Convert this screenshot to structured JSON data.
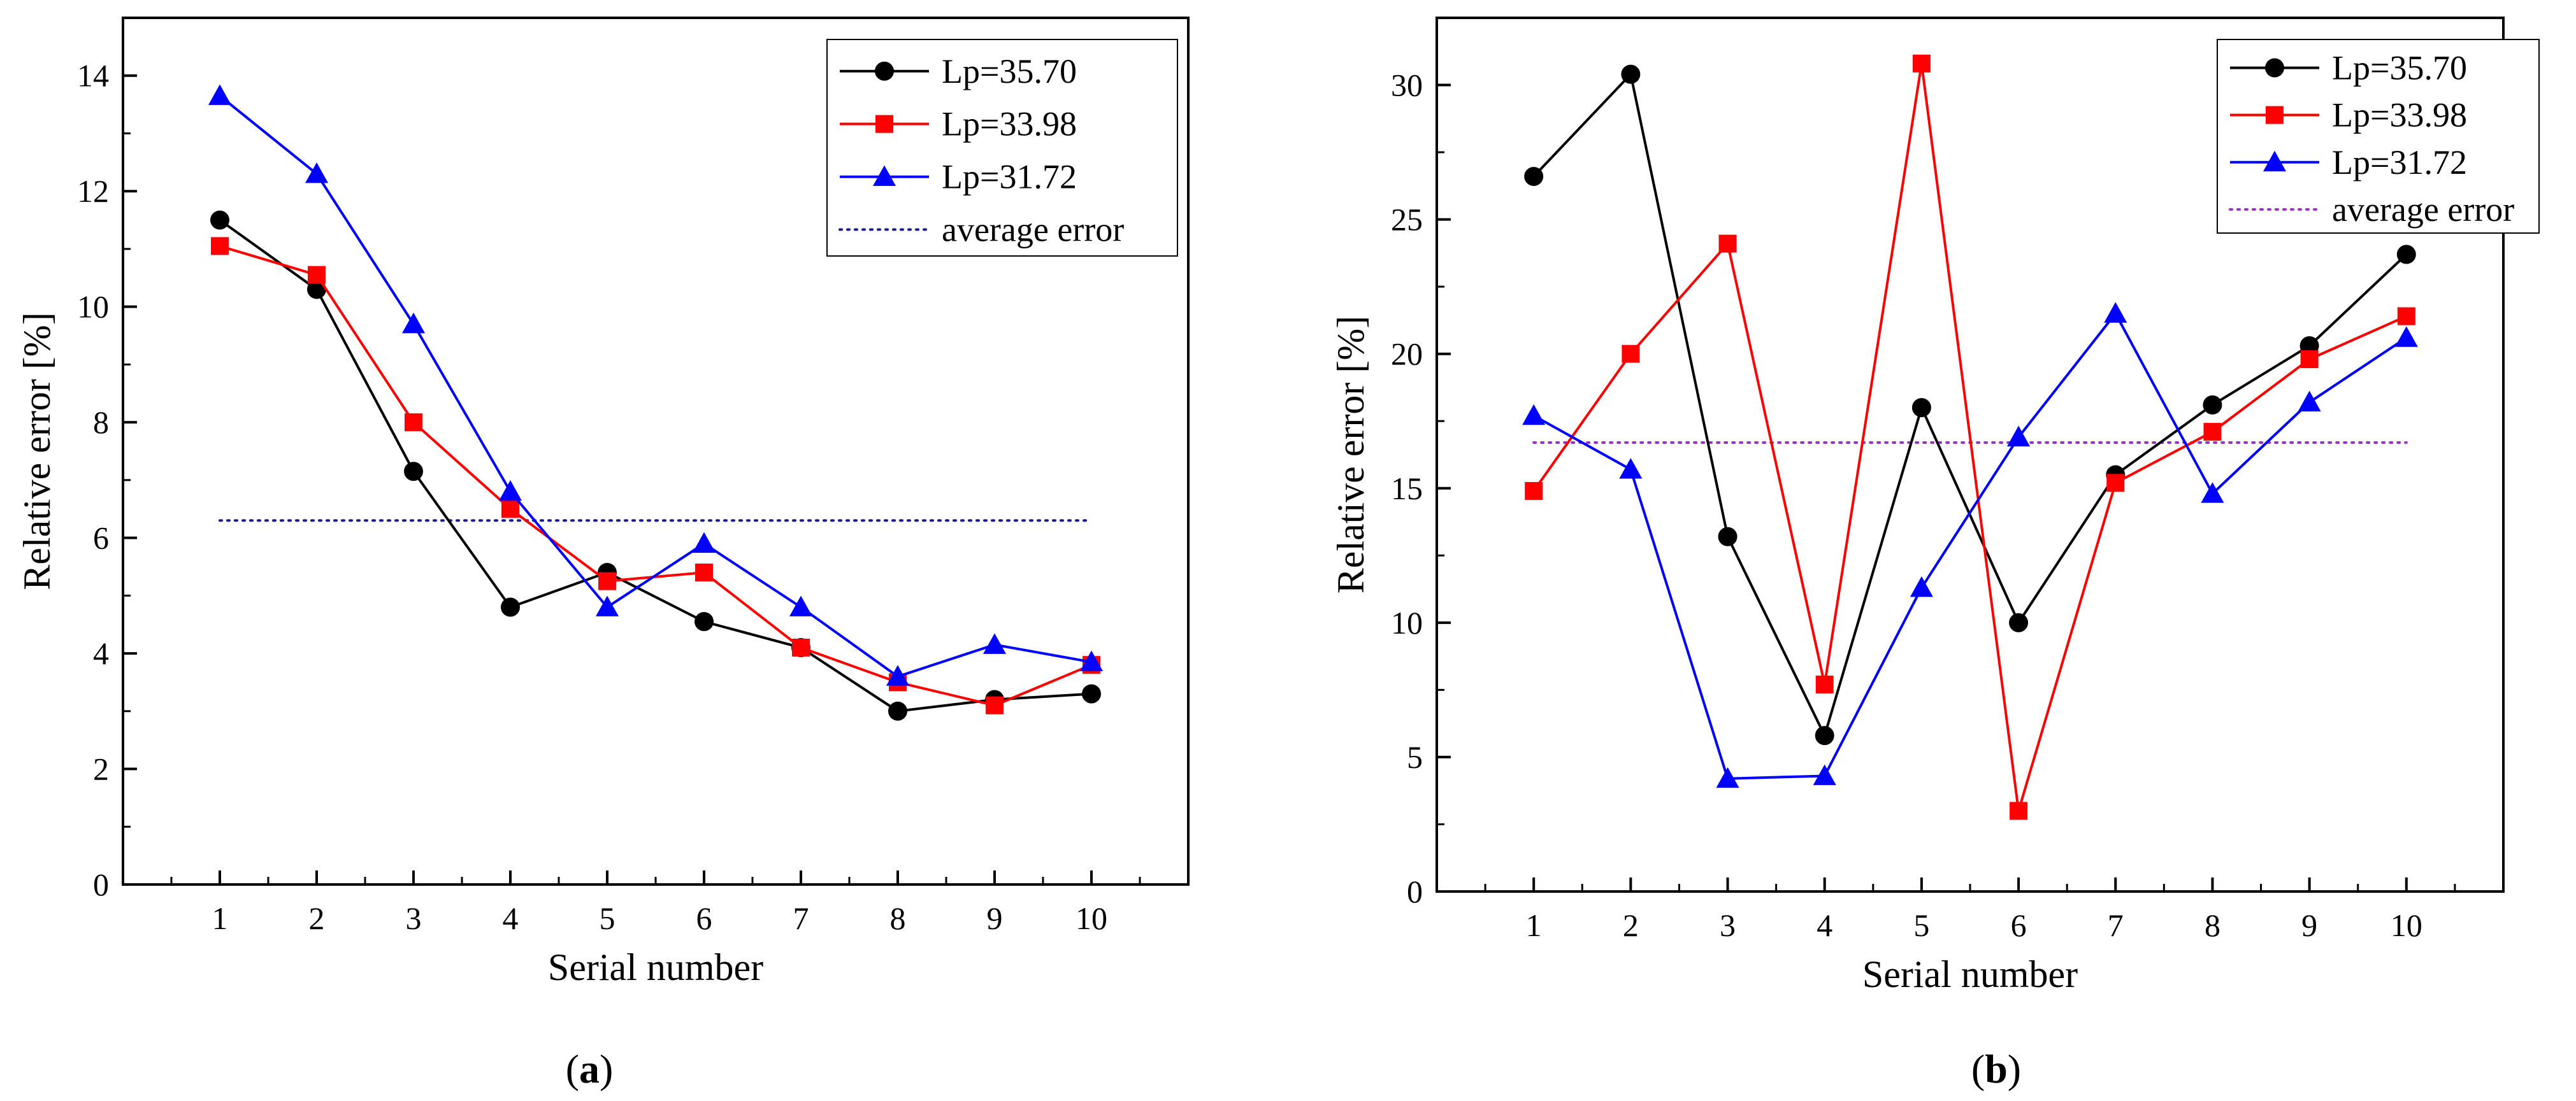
{
  "chart_data": [
    {
      "type": "line",
      "panel": "a",
      "caption_open": "(",
      "caption_letter": "a",
      "caption_close": ")",
      "xlabel": "Serial number",
      "ylabel": "Relative error [%]",
      "xlim": [
        0,
        11
      ],
      "ylim": [
        0,
        15
      ],
      "x": [
        1,
        2,
        3,
        4,
        5,
        6,
        7,
        8,
        9,
        10
      ],
      "xtick_labels": [
        "1",
        "2",
        "3",
        "4",
        "5",
        "6",
        "7",
        "8",
        "9",
        "10"
      ],
      "ytick_values": [
        0,
        2,
        4,
        6,
        8,
        10,
        12,
        14
      ],
      "ytick_labels": [
        "0",
        "2",
        "4",
        "6",
        "8",
        "10",
        "12",
        "14"
      ],
      "legend_position": "top-right",
      "series": [
        {
          "name": "Lp=35.70",
          "color": "#000000",
          "marker": "circle",
          "values": [
            11.5,
            10.3,
            7.15,
            4.8,
            5.4,
            4.55,
            4.1,
            3.0,
            3.2,
            3.3
          ]
        },
        {
          "name": "Lp=33.98",
          "color": "#ff0000",
          "marker": "square",
          "values": [
            11.05,
            10.55,
            8.0,
            6.5,
            5.25,
            5.4,
            4.1,
            3.5,
            3.1,
            3.8
          ]
        },
        {
          "name": "Lp=31.72",
          "color": "#0000ff",
          "marker": "triangle",
          "values": [
            13.65,
            12.3,
            9.7,
            6.8,
            4.8,
            5.9,
            4.8,
            3.6,
            4.15,
            3.85
          ]
        }
      ],
      "average_error": {
        "name": "average error",
        "value": 6.3,
        "x_range": [
          1,
          10
        ],
        "color": "#1a1a8c"
      }
    },
    {
      "type": "line",
      "panel": "b",
      "caption_open": "(",
      "caption_letter": "b",
      "caption_close": ")",
      "xlabel": "Serial number",
      "ylabel": "Relative error [%]",
      "xlim": [
        0,
        11
      ],
      "ylim": [
        0,
        32.5
      ],
      "x": [
        1,
        2,
        3,
        4,
        5,
        6,
        7,
        8,
        9,
        10
      ],
      "xtick_labels": [
        "1",
        "2",
        "3",
        "4",
        "5",
        "6",
        "7",
        "8",
        "9",
        "10"
      ],
      "ytick_values": [
        0,
        5,
        10,
        15,
        20,
        25,
        30
      ],
      "ytick_labels": [
        "0",
        "5",
        "10",
        "15",
        "20",
        "25",
        "30"
      ],
      "legend_position": "top-right",
      "series": [
        {
          "name": "Lp=35.70",
          "color": "#000000",
          "marker": "circle",
          "values": [
            26.6,
            30.4,
            13.2,
            5.8,
            18.0,
            10.0,
            15.5,
            18.1,
            20.3,
            23.7
          ]
        },
        {
          "name": "Lp=33.98",
          "color": "#ff0000",
          "marker": "square",
          "values": [
            14.9,
            20.0,
            24.1,
            7.7,
            30.8,
            3.0,
            15.2,
            17.1,
            19.8,
            21.4
          ]
        },
        {
          "name": "Lp=31.72",
          "color": "#0000ff",
          "marker": "triangle",
          "values": [
            17.7,
            15.7,
            4.2,
            4.3,
            11.3,
            16.9,
            21.5,
            14.8,
            18.2,
            20.6
          ]
        }
      ],
      "average_error": {
        "name": "average error",
        "value": 16.7,
        "x_range": [
          1,
          10
        ],
        "color": "#9b30c8"
      }
    }
  ]
}
